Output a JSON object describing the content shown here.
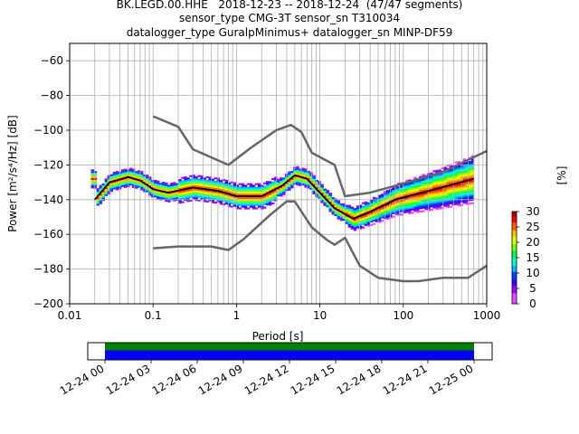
{
  "header": {
    "line1": "BK.LEGD.00.HHE   2018-12-23 -- 2018-12-24  (47/47 segments)",
    "line2": "sensor_type CMG-3T sensor_sn T310034",
    "line3": "datalogger_type GuralpMinimus+ datalogger_sn MINP-DF59"
  },
  "chart_data": [
    {
      "type": "heatmap",
      "title": "",
      "xlabel": "Period [s]",
      "ylabel": "Power [m²/s⁴/Hz] [dB]",
      "xscale": "log",
      "xlim": [
        0.01,
        1000
      ],
      "ylim": [
        -200,
        -50
      ],
      "x_ticks": [
        0.01,
        0.1,
        1,
        10,
        100,
        1000
      ],
      "x_tick_labels": [
        "0.01",
        "0.1",
        "1",
        "10",
        "100",
        "1000"
      ],
      "y_ticks": [
        -200,
        -180,
        -160,
        -140,
        -120,
        -100,
        -80,
        -60
      ],
      "y_tick_labels": [
        "−200",
        "−180",
        "−160",
        "−140",
        "−120",
        "−100",
        "−80",
        "−60"
      ],
      "grid": true,
      "colorbar": {
        "label": "[%]",
        "ticks": [
          0,
          5,
          10,
          15,
          20,
          25,
          30
        ],
        "range": [
          0,
          30
        ]
      },
      "series": [
        {
          "x": [
            0.1,
            0.2,
            0.3,
            0.8,
            1.5,
            3,
            4.5,
            6,
            8,
            15,
            20,
            40,
            80,
            300,
            1000
          ],
          "y": [
            -92,
            -98,
            -111,
            -120,
            -110,
            -100,
            -97,
            -101,
            -113,
            -120,
            -138,
            -136,
            -132,
            -124,
            -112
          ]
        },
        {
          "x": [
            0.1,
            0.2,
            0.5,
            0.8,
            1.2,
            2.5,
            4,
            5,
            8,
            12,
            15,
            20,
            30,
            50,
            100,
            150,
            300,
            600,
            1000
          ],
          "y": [
            -168,
            -167,
            -167,
            -169,
            -163,
            -149,
            -141,
            -141,
            -156,
            -163,
            -166,
            -162,
            -178,
            -185,
            -187,
            -187,
            -185,
            -185,
            -178
          ]
        },
        {
          "x": [
            0.02,
            0.03,
            0.05,
            0.07,
            0.1,
            0.15,
            0.3,
            0.6,
            1,
            2,
            3.5,
            5,
            7,
            10,
            15,
            25,
            40,
            80,
            200,
            700
          ],
          "y": [
            -140,
            -130,
            -127,
            -129,
            -134,
            -136,
            -133,
            -135,
            -138,
            -138,
            -132,
            -126,
            -128,
            -136,
            -145,
            -151,
            -147,
            -140,
            -135,
            -128
          ]
        }
      ]
    },
    {
      "type": "bar",
      "xlim": [
        "2018-12-24 00:00",
        "2018-12-25 00:00"
      ],
      "tick_labels": [
        "12-24 00",
        "12-24 03",
        "12-24 06",
        "12-24 09",
        "12-24 12",
        "12-24 15",
        "12-24 18",
        "12-24 21",
        "12-25 00"
      ],
      "series": [
        {
          "start": "2018-12-24 00:00",
          "end": "2018-12-25 00:00",
          "color": "#008000"
        },
        {
          "start": "2018-12-24 00:00",
          "end": "2018-12-25 00:00",
          "color": "#0000ff"
        }
      ]
    }
  ]
}
